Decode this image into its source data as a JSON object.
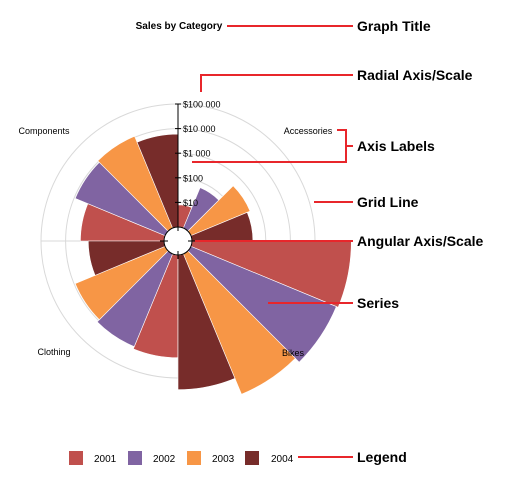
{
  "chart_data": {
    "type": "polar-bar",
    "title": "Sales by Category",
    "categories": [
      "Accessories",
      "Bikes",
      "Clothing",
      "Components"
    ],
    "radial_axis": {
      "scale": "log",
      "ticks": [
        "$10",
        "$100",
        "$1 000",
        "$10 000",
        "$100 000"
      ],
      "tick_values": [
        10,
        100,
        1000,
        10000,
        100000
      ],
      "range": [
        1,
        100000
      ]
    },
    "legend_position": "bottom",
    "grid": true,
    "series": [
      {
        "name": "2001",
        "color": "#c0504d",
        "values": [
          8,
          3000000,
          15000,
          2500
        ]
      },
      {
        "name": "2002",
        "color": "#8064a2",
        "values": [
          60,
          2500000,
          12000,
          9000
        ]
      },
      {
        "name": "2003",
        "color": "#f79646",
        "values": [
          400,
          1500000,
          9000,
          11000
        ]
      },
      {
        "name": "2004",
        "color": "#772c2a",
        "values": [
          300,
          300000,
          1200,
          6000
        ]
      }
    ]
  },
  "callouts": {
    "graph_title": "Graph Title",
    "radial_axis": "Radial Axis/Scale",
    "axis_labels": "Axis Labels",
    "grid_line": "Grid Line",
    "angular_axis": "Angular Axis/Scale",
    "series": "Series",
    "legend": "Legend"
  },
  "colors": {
    "callout_line": "#e8262b",
    "grid": "#d9d9d9",
    "axis": "#000000"
  }
}
